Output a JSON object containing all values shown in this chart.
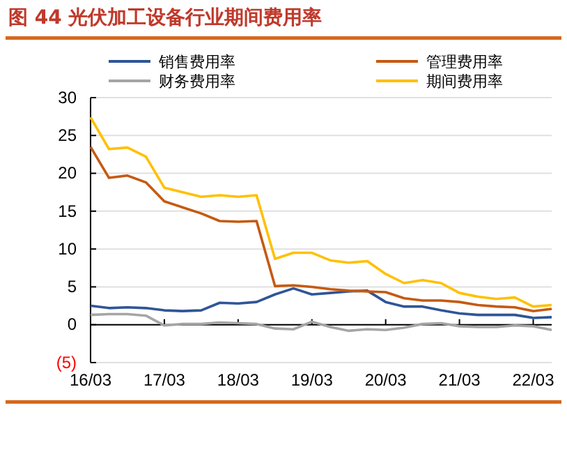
{
  "chart_data": {
    "type": "line",
    "title": "图 44 光伏加工设备行业期间费用率",
    "categories": [
      "16/03",
      null,
      null,
      null,
      "17/03",
      null,
      null,
      null,
      "18/03",
      null,
      null,
      null,
      "19/03",
      null,
      null,
      null,
      "20/03",
      null,
      null,
      null,
      "21/03",
      null,
      null,
      null,
      "22/03",
      null
    ],
    "series": [
      {
        "name": "销售费用率",
        "color": "#2f5597",
        "values": [
          2.5,
          2.2,
          2.3,
          2.2,
          1.9,
          1.8,
          1.9,
          2.9,
          2.8,
          3.0,
          4.0,
          4.8,
          4.0,
          4.2,
          4.4,
          4.5,
          3.0,
          2.4,
          2.4,
          1.9,
          1.5,
          1.3,
          1.3,
          1.3,
          0.9,
          1.0
        ]
      },
      {
        "name": "管理费用率",
        "color": "#c55a11",
        "values": [
          23.5,
          19.4,
          19.7,
          18.8,
          16.3,
          15.5,
          14.7,
          13.7,
          13.6,
          13.7,
          5.1,
          5.2,
          5.0,
          4.7,
          4.5,
          4.4,
          4.3,
          3.5,
          3.2,
          3.2,
          3.0,
          2.6,
          2.4,
          2.3,
          1.8,
          2.1
        ]
      },
      {
        "name": "财务费用率",
        "color": "#a5a5a5",
        "values": [
          1.3,
          1.4,
          1.4,
          1.2,
          -0.1,
          0.1,
          0.1,
          0.3,
          0.2,
          0.1,
          -0.5,
          -0.6,
          0.4,
          -0.3,
          -0.8,
          -0.6,
          -0.7,
          -0.4,
          0.1,
          0.2,
          -0.2,
          -0.3,
          -0.3,
          -0.1,
          -0.2,
          -0.7
        ]
      },
      {
        "name": "期间费用率",
        "color": "#ffc000",
        "values": [
          27.4,
          23.2,
          23.4,
          22.2,
          18.1,
          17.5,
          16.9,
          17.1,
          16.9,
          17.1,
          8.7,
          9.5,
          9.5,
          8.5,
          8.2,
          8.4,
          6.7,
          5.5,
          5.9,
          5.5,
          4.2,
          3.7,
          3.4,
          3.6,
          2.4,
          2.6
        ]
      }
    ],
    "ylim": [
      -5,
      30
    ],
    "yticks": [
      {
        "value": -5,
        "label": "(5)"
      },
      0,
      5,
      10,
      15,
      20,
      25,
      30
    ],
    "grid": "y",
    "legend": "top",
    "marker": "none",
    "line_style": "solid"
  }
}
